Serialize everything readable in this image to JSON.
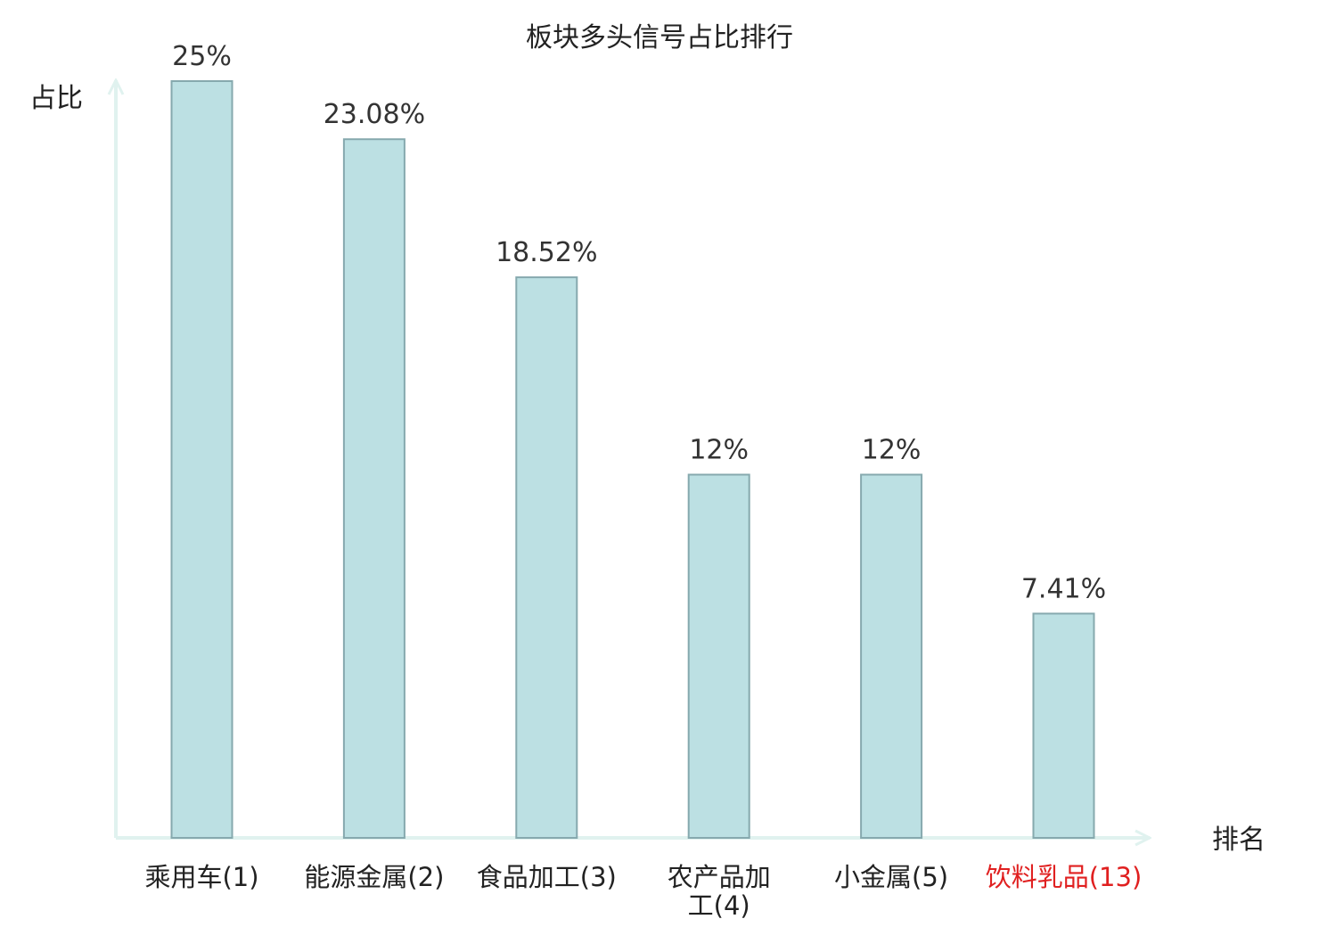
{
  "chart_data": {
    "type": "bar",
    "title": "板块多头信号占比排行",
    "xlabel": "排名",
    "ylabel": "占比",
    "ylim": [
      0,
      25
    ],
    "grid": false,
    "categories": [
      {
        "name": "乘用车",
        "rank": "(1)",
        "lines": [
          "乘用车(1)"
        ]
      },
      {
        "name": "能源金属",
        "rank": "(2)",
        "lines": [
          "能源金属(2)"
        ]
      },
      {
        "name": "食品加工",
        "rank": "(3)",
        "lines": [
          "食品加工(3)"
        ]
      },
      {
        "name": "农产品加工",
        "rank": "(4)",
        "lines": [
          "农产品加",
          "工(4)"
        ]
      },
      {
        "name": "小金属",
        "rank": "(5)",
        "lines": [
          "小金属(5)"
        ]
      },
      {
        "name": "饮料乳品",
        "rank": "(13)",
        "lines": [
          "饮料乳品(13)"
        ],
        "highlight": true
      }
    ],
    "values": [
      25,
      23.08,
      18.52,
      12,
      12,
      7.41
    ],
    "value_labels": [
      "25%",
      "23.08%",
      "18.52%",
      "12%",
      "12%",
      "7.41%"
    ]
  },
  "colors": {
    "bar_fill": "#bce0e3",
    "bar_stroke": "#86a9ae",
    "axis": "#e0f2ef",
    "text": "#222222",
    "rank_text": "#555555",
    "highlight": "#e02020"
  }
}
